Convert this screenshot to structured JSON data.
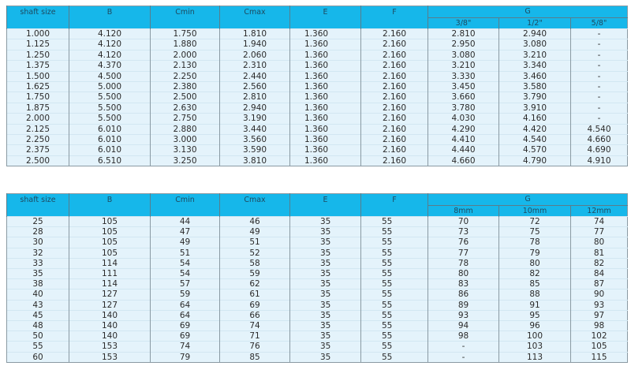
{
  "tables": [
    {
      "headers": {
        "shaft_size": "shaft size",
        "b": "B",
        "cmin": "Cmin",
        "cmax": "Cmax",
        "e": "E",
        "f": "F",
        "g": "G",
        "g_sub": [
          "3/8\"",
          "1/2\"",
          "5/8\""
        ]
      },
      "rows": [
        [
          "1.000",
          "4.120",
          "1.750",
          "1.810",
          "1.360",
          "2.160",
          "2.810",
          "2.940",
          "-"
        ],
        [
          "1.125",
          "4.120",
          "1.880",
          "1.940",
          "1.360",
          "2.160",
          "2.950",
          "3.080",
          "-"
        ],
        [
          "1.250",
          "4.120",
          "2.000",
          "2.060",
          "1.360",
          "2.160",
          "3.080",
          "3.210",
          "-"
        ],
        [
          "1.375",
          "4.370",
          "2.130",
          "2.310",
          "1.360",
          "2.160",
          "3.210",
          "3.340",
          "-"
        ],
        [
          "1.500",
          "4.500",
          "2.250",
          "2.440",
          "1.360",
          "2.160",
          "3.330",
          "3.460",
          "-"
        ],
        [
          "1.625",
          "5.000",
          "2.380",
          "2.560",
          "1.360",
          "2.160",
          "3.450",
          "3.580",
          "-"
        ],
        [
          "1.750",
          "5.500",
          "2.500",
          "2.810",
          "1.360",
          "2.160",
          "3.660",
          "3.790",
          "-"
        ],
        [
          "1.875",
          "5.500",
          "2.630",
          "2.940",
          "1.360",
          "2.160",
          "3.780",
          "3.910",
          "-"
        ],
        [
          "2.000",
          "5.500",
          "2.750",
          "3.190",
          "1.360",
          "2.160",
          "4.030",
          "4.160",
          "-"
        ],
        [
          "2.125",
          "6.010",
          "2.880",
          "3.440",
          "1.360",
          "2.160",
          "4.290",
          "4.420",
          "4.540"
        ],
        [
          "2.250",
          "6.010",
          "3.000",
          "3.560",
          "1.360",
          "2.160",
          "4.410",
          "4.540",
          "4.660"
        ],
        [
          "2.375",
          "6.010",
          "3.130",
          "3.590",
          "1.360",
          "2.160",
          "4.440",
          "4.570",
          "4.690"
        ],
        [
          "2.500",
          "6.510",
          "3.250",
          "3.810",
          "1.360",
          "2.160",
          "4.660",
          "4.790",
          "4.910"
        ]
      ]
    },
    {
      "headers": {
        "shaft_size": "shaft size",
        "b": "B",
        "cmin": "Cmin",
        "cmax": "Cmax",
        "e": "E",
        "f": "F",
        "g": "G",
        "g_sub": [
          "8mm",
          "10mm",
          "12mm"
        ]
      },
      "rows": [
        [
          "25",
          "105",
          "44",
          "46",
          "35",
          "55",
          "70",
          "72",
          "74"
        ],
        [
          "28",
          "105",
          "47",
          "49",
          "35",
          "55",
          "73",
          "75",
          "77"
        ],
        [
          "30",
          "105",
          "49",
          "51",
          "35",
          "55",
          "76",
          "78",
          "80"
        ],
        [
          "32",
          "105",
          "51",
          "52",
          "35",
          "55",
          "77",
          "79",
          "81"
        ],
        [
          "33",
          "114",
          "54",
          "58",
          "35",
          "55",
          "78",
          "80",
          "82"
        ],
        [
          "35",
          "111",
          "54",
          "59",
          "35",
          "55",
          "80",
          "82",
          "84"
        ],
        [
          "38",
          "114",
          "57",
          "62",
          "35",
          "55",
          "83",
          "85",
          "87"
        ],
        [
          "40",
          "127",
          "59",
          "61",
          "35",
          "55",
          "86",
          "88",
          "90"
        ],
        [
          "43",
          "127",
          "64",
          "69",
          "35",
          "55",
          "89",
          "91",
          "93"
        ],
        [
          "45",
          "140",
          "64",
          "66",
          "35",
          "55",
          "93",
          "95",
          "97"
        ],
        [
          "48",
          "140",
          "69",
          "74",
          "35",
          "55",
          "94",
          "96",
          "98"
        ],
        [
          "50",
          "140",
          "69",
          "71",
          "35",
          "55",
          "98",
          "100",
          "102"
        ],
        [
          "55",
          "153",
          "74",
          "76",
          "35",
          "55",
          "-",
          "103",
          "105"
        ],
        [
          "60",
          "153",
          "79",
          "85",
          "35",
          "55",
          "-",
          "113",
          "115"
        ]
      ]
    }
  ]
}
